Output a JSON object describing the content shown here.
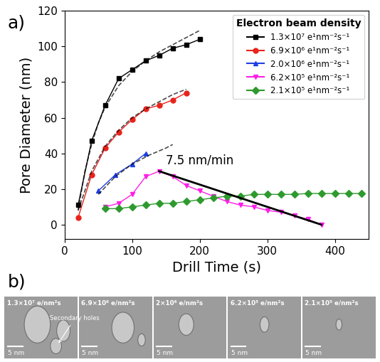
{
  "chart_data": {
    "type": "line",
    "panel_label": "a)",
    "x_label": "Drill Time (s)",
    "y_label": "Pore Diameter (nm)",
    "xlim": [
      0,
      450
    ],
    "xticks": [
      0,
      100,
      200,
      300,
      400
    ],
    "ylim": [
      -8,
      120
    ],
    "yticks": [
      0,
      20,
      40,
      60,
      80,
      100,
      120
    ],
    "grid": false,
    "legend": "upper right",
    "legend_title": "Electron beam density",
    "series": [
      {
        "name": "1.3×10⁷ e¹nm⁻²s⁻¹",
        "color": "#000000",
        "marker": "square",
        "line_style": "solid",
        "x": [
          20,
          40,
          60,
          80,
          100,
          120,
          140,
          160,
          180,
          200
        ],
        "values": [
          11,
          47,
          67,
          82,
          87,
          92,
          95,
          99,
          101,
          104
        ]
      },
      {
        "name": "6.9×10⁶ e¹nm⁻²s⁻¹",
        "color": "#e8231c",
        "marker": "circle",
        "line_style": "solid",
        "x": [
          20,
          40,
          60,
          80,
          100,
          120,
          140,
          160,
          180
        ],
        "values": [
          4,
          28,
          43,
          52,
          59,
          65,
          67,
          70,
          74
        ]
      },
      {
        "name": "2.0×10⁶ e¹nm⁻²s⁻¹",
        "color": "#1f3fe0",
        "marker": "triangle_up",
        "line_style": "solid",
        "x": [
          50,
          75,
          100,
          120
        ],
        "values": [
          19,
          28,
          34,
          40
        ]
      },
      {
        "name": "6.2×10⁵ e¹nm⁻²s⁻¹",
        "color": "#ff1fe6",
        "marker": "triangle_down",
        "line_style": "solid",
        "x": [
          60,
          80,
          100,
          120,
          140,
          160,
          180,
          200,
          220,
          240,
          260,
          280,
          300,
          320,
          340,
          360,
          380
        ],
        "values": [
          10,
          12,
          17,
          27,
          30,
          27,
          22,
          19,
          16,
          13,
          11,
          10,
          8,
          7,
          5,
          3,
          0
        ]
      },
      {
        "name": "2.1×10⁵ e¹nm⁻²s⁻¹",
        "color": "#2e9a2e",
        "marker": "diamond",
        "line_style": "solid",
        "x": [
          60,
          80,
          100,
          120,
          140,
          160,
          180,
          200,
          220,
          240,
          260,
          280,
          300,
          320,
          340,
          360,
          380,
          400,
          420,
          440
        ],
        "values": [
          9,
          9,
          10,
          11,
          12,
          12,
          13,
          14,
          15,
          16,
          16,
          17,
          17,
          17,
          17,
          17.5,
          17.5,
          17.5,
          17.5,
          17.5
        ]
      }
    ],
    "fits": [
      {
        "color": "#000000",
        "line_style": "dashed",
        "x": [
          20,
          30,
          40,
          50,
          60,
          80,
          100,
          120,
          140,
          160,
          180,
          200
        ],
        "values": [
          8,
          30,
          45,
          57,
          66,
          78,
          86,
          92,
          97,
          101,
          105,
          109
        ]
      },
      {
        "color": "#000000",
        "line_style": "dashed",
        "x": [
          20,
          40,
          60,
          80,
          100,
          120,
          140,
          160,
          180
        ],
        "values": [
          8,
          30,
          44,
          53,
          60,
          65,
          69,
          73,
          76
        ]
      },
      {
        "color": "#000000",
        "line_style": "dashed",
        "x": [
          50,
          75,
          100,
          125,
          150,
          160
        ],
        "values": [
          17,
          27,
          34,
          39,
          43,
          45
        ]
      }
    ],
    "trend_line": {
      "x": [
        140,
        380
      ],
      "values": [
        30,
        0
      ],
      "color": "#000000",
      "line_style": "solid",
      "label": "7.5 nm/min",
      "label_x": 150,
      "label_y": 34
    }
  },
  "panel_b": {
    "label": "b)",
    "images": [
      {
        "caption": "1.3×10⁷ e/nm²s",
        "scale_bar": "5 nm"
      },
      {
        "caption": "6.9×10⁶ e/nm²s",
        "scale_bar": "5 nm"
      },
      {
        "caption": "2×10⁶ e/nm²s",
        "scale_bar": "5 nm"
      },
      {
        "caption": "6.2×10⁵ e/nm²s",
        "scale_bar": "5 nm"
      },
      {
        "caption": "2.1×10⁵ e/nm²s",
        "scale_bar": "5 nm"
      }
    ],
    "annotation": "Secondary holes"
  }
}
